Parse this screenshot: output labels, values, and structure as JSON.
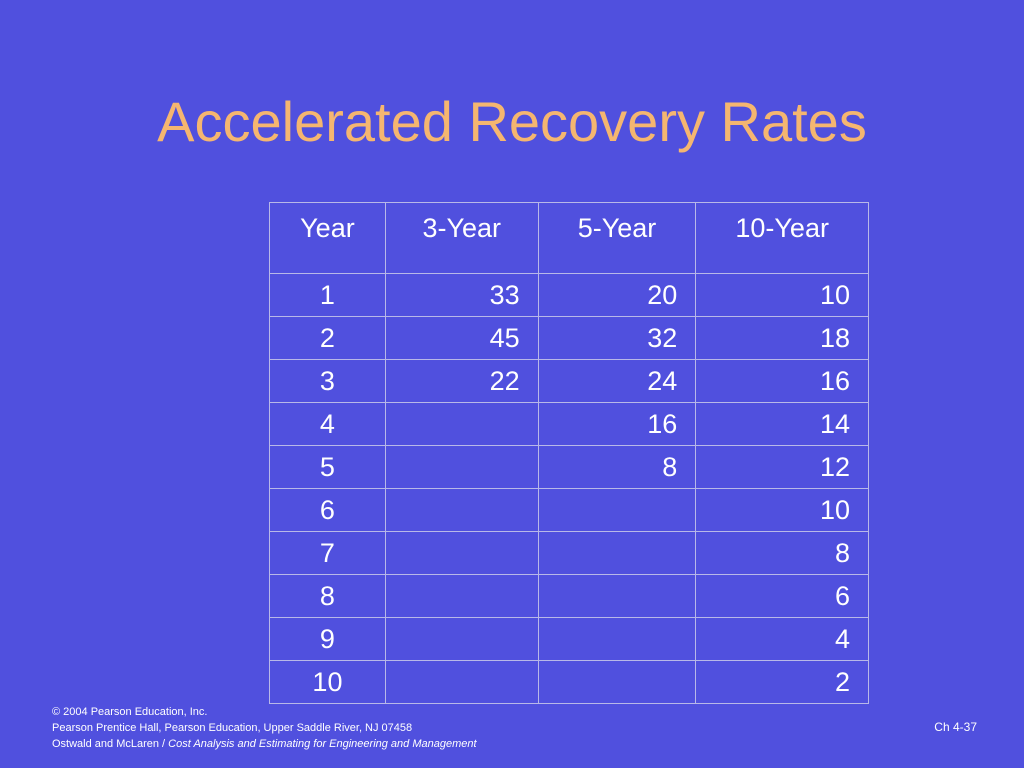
{
  "slide": {
    "title": "Accelerated Recovery Rates"
  },
  "table": {
    "headers": [
      "Year",
      "3-Year",
      "5-Year",
      "10-Year"
    ],
    "rows": [
      [
        "1",
        "33",
        "20",
        "10"
      ],
      [
        "2",
        "45",
        "32",
        "18"
      ],
      [
        "3",
        "22",
        "24",
        "16"
      ],
      [
        "4",
        "",
        "16",
        "14"
      ],
      [
        "5",
        "",
        "8",
        "12"
      ],
      [
        "6",
        "",
        "",
        "10"
      ],
      [
        "7",
        "",
        "",
        "8"
      ],
      [
        "8",
        "",
        "",
        "6"
      ],
      [
        "9",
        "",
        "",
        "4"
      ],
      [
        "10",
        "",
        "",
        "2"
      ]
    ]
  },
  "footer": {
    "copyright": "© 2004 Pearson Education, Inc.",
    "publisher": "Pearson Prentice Hall, Pearson Education, Upper Saddle River, NJ 07458",
    "authors": "Ostwald and McLaren / ",
    "book_title": "Cost Analysis and Estimating for Engineering and Management"
  },
  "page_number": "Ch 4-37",
  "colors": {
    "background": "#5050de",
    "title": "#f5b670",
    "text": "#ffffff",
    "table_border": "#b8b8e8"
  }
}
